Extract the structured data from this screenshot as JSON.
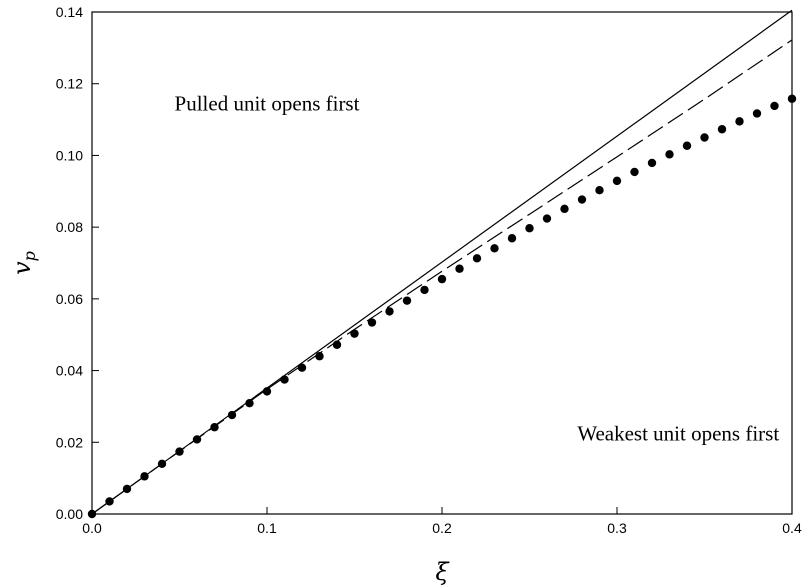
{
  "chart_data": {
    "type": "line",
    "title": "",
    "xlabel": "ξ",
    "ylabel": "v",
    "ylabel_subscript": "p",
    "xlim": [
      0,
      0.4
    ],
    "ylim": [
      0,
      0.14
    ],
    "grid": false,
    "x_ticks": [
      0.0,
      0.1,
      0.2,
      0.3,
      0.4
    ],
    "x_tick_labels": [
      "0.0",
      "0.1",
      "0.2",
      "0.3",
      "0.4"
    ],
    "y_ticks": [
      0,
      0.02,
      0.04,
      0.06,
      0.08,
      0.1,
      0.12,
      0.14
    ],
    "y_tick_labels": [
      "0.00",
      "0.02",
      "0.04",
      "0.06",
      "0.08",
      "0.10",
      "0.12",
      "0.14"
    ],
    "series": [
      {
        "style": "solid",
        "color": "#000000",
        "x": [
          0,
          0.4
        ],
        "y": [
          0,
          0.1405
        ]
      },
      {
        "style": "dashed",
        "color": "#000000",
        "x": [
          0,
          0.05,
          0.1,
          0.15,
          0.2,
          0.25,
          0.3,
          0.35,
          0.4
        ],
        "y": [
          0,
          0.0175,
          0.0348,
          0.0515,
          0.0677,
          0.0836,
          0.0996,
          0.1157,
          0.1322
        ]
      },
      {
        "style": "dots",
        "color": "#000000",
        "x": [
          0,
          0.01,
          0.02,
          0.03,
          0.04,
          0.05,
          0.06,
          0.07,
          0.08,
          0.09,
          0.1,
          0.11,
          0.12,
          0.13,
          0.14,
          0.15,
          0.16,
          0.17,
          0.18,
          0.19,
          0.2,
          0.21,
          0.22,
          0.23,
          0.24,
          0.25,
          0.26,
          0.27,
          0.28,
          0.29,
          0.3,
          0.31,
          0.32,
          0.33,
          0.34,
          0.35,
          0.36,
          0.37,
          0.38,
          0.39,
          0.4
        ],
        "y": [
          0,
          0.0035,
          0.007,
          0.0105,
          0.014,
          0.0174,
          0.0208,
          0.0242,
          0.0276,
          0.0309,
          0.0342,
          0.0375,
          0.0408,
          0.044,
          0.0472,
          0.0503,
          0.0534,
          0.0565,
          0.0595,
          0.0625,
          0.0655,
          0.0684,
          0.0713,
          0.0741,
          0.0769,
          0.0797,
          0.0824,
          0.0851,
          0.0877,
          0.0903,
          0.0929,
          0.0954,
          0.0979,
          0.1003,
          0.1027,
          0.105,
          0.1073,
          0.1095,
          0.1117,
          0.1138,
          0.1158
        ]
      }
    ],
    "annotations": [
      {
        "text": "Pulled unit opens first",
        "x": 0.1,
        "y": 0.1125
      },
      {
        "text": "Weakest unit opens first",
        "x": 0.335,
        "y": 0.0205
      }
    ]
  }
}
